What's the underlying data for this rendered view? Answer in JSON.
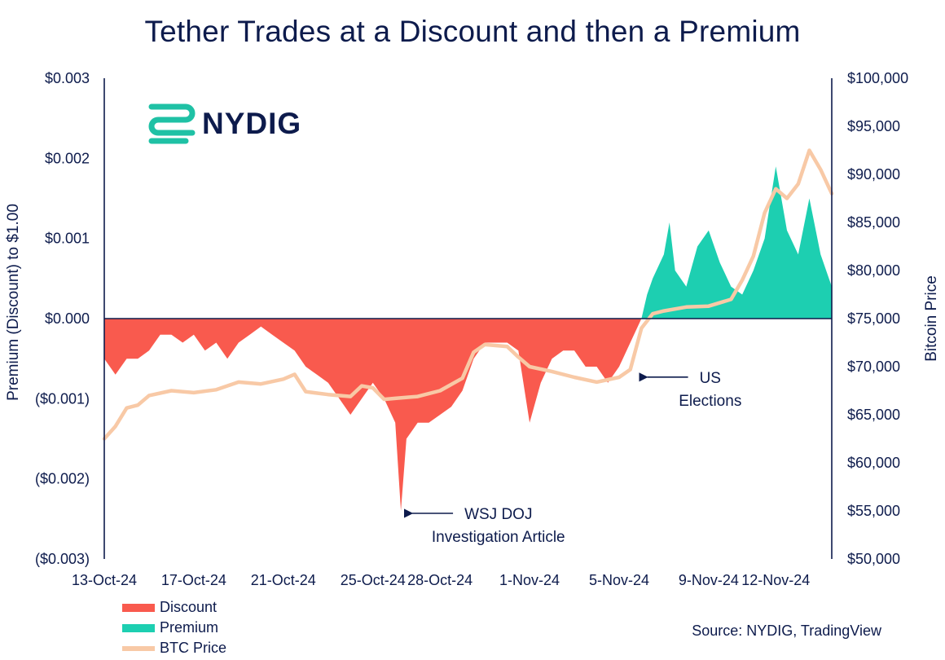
{
  "colors": {
    "discount": "#f95a4e",
    "premium": "#1dcfb1",
    "btc": "#f8c9a6",
    "axis": "#0d1b4c",
    "logo": "#1fc1a5"
  },
  "logo": {
    "icon": "nydig-logo-icon",
    "text": "NYDIG"
  },
  "source": "Source: NYDIG, TradingView",
  "chart_data": {
    "type": "area",
    "title": "Tether Trades at a Discount and then a Premium",
    "ylabel": "Premium (Discount) to $1.00",
    "y2label": "Bitcoin Price",
    "ylim": [
      -0.003,
      0.003
    ],
    "y2lim": [
      50000,
      100000
    ],
    "y_ticks": [
      {
        "value": 0.003,
        "label": "$0.003"
      },
      {
        "value": 0.002,
        "label": "$0.002"
      },
      {
        "value": 0.001,
        "label": "$0.001"
      },
      {
        "value": 0.0,
        "label": "$0.000"
      },
      {
        "value": -0.001,
        "label": "($0.001)"
      },
      {
        "value": -0.002,
        "label": "($0.002)"
      },
      {
        "value": -0.003,
        "label": "($0.003)"
      }
    ],
    "y2_ticks": [
      {
        "value": 100000,
        "label": "$100,000"
      },
      {
        "value": 95000,
        "label": "$95,000"
      },
      {
        "value": 90000,
        "label": "$90,000"
      },
      {
        "value": 85000,
        "label": "$85,000"
      },
      {
        "value": 80000,
        "label": "$80,000"
      },
      {
        "value": 75000,
        "label": "$75,000"
      },
      {
        "value": 70000,
        "label": "$70,000"
      },
      {
        "value": 65000,
        "label": "$65,000"
      },
      {
        "value": 60000,
        "label": "$60,000"
      },
      {
        "value": 55000,
        "label": "$55,000"
      },
      {
        "value": 50000,
        "label": "$50,000"
      }
    ],
    "xlim": [
      "2024-10-13",
      "2024-11-14"
    ],
    "x_ticks": [
      {
        "date": "2024-10-13",
        "label": "13-Oct-24"
      },
      {
        "date": "2024-10-17",
        "label": "17-Oct-24"
      },
      {
        "date": "2024-10-21",
        "label": "21-Oct-24"
      },
      {
        "date": "2024-10-25",
        "label": "25-Oct-24"
      },
      {
        "date": "2024-10-28",
        "label": "28-Oct-24"
      },
      {
        "date": "2024-11-01",
        "label": "1-Nov-24"
      },
      {
        "date": "2024-11-05",
        "label": "5-Nov-24"
      },
      {
        "date": "2024-11-09",
        "label": "9-Nov-24"
      },
      {
        "date": "2024-11-12",
        "label": "12-Nov-24"
      }
    ],
    "series": [
      {
        "name": "Discount",
        "axis": "left",
        "style": "area",
        "data": [
          [
            "2024-10-13T00:00",
            -0.0005
          ],
          [
            "2024-10-13T12:00",
            -0.0007
          ],
          [
            "2024-10-14T00:00",
            -0.0005
          ],
          [
            "2024-10-14T12:00",
            -0.0005
          ],
          [
            "2024-10-15T00:00",
            -0.0004
          ],
          [
            "2024-10-15T12:00",
            -0.0002
          ],
          [
            "2024-10-16T00:00",
            -0.0002
          ],
          [
            "2024-10-16T12:00",
            -0.0003
          ],
          [
            "2024-10-17T00:00",
            -0.0002
          ],
          [
            "2024-10-17T12:00",
            -0.0004
          ],
          [
            "2024-10-18T00:00",
            -0.0003
          ],
          [
            "2024-10-18T12:00",
            -0.0005
          ],
          [
            "2024-10-19T00:00",
            -0.0003
          ],
          [
            "2024-10-19T12:00",
            -0.0002
          ],
          [
            "2024-10-20T00:00",
            -0.0001
          ],
          [
            "2024-10-20T12:00",
            -0.0002
          ],
          [
            "2024-10-21T00:00",
            -0.0003
          ],
          [
            "2024-10-21T12:00",
            -0.0004
          ],
          [
            "2024-10-22T00:00",
            -0.0006
          ],
          [
            "2024-10-22T12:00",
            -0.0007
          ],
          [
            "2024-10-23T00:00",
            -0.0008
          ],
          [
            "2024-10-23T12:00",
            -0.001
          ],
          [
            "2024-10-24T00:00",
            -0.0012
          ],
          [
            "2024-10-24T12:00",
            -0.001
          ],
          [
            "2024-10-25T00:00",
            -0.0008
          ],
          [
            "2024-10-25T12:00",
            -0.001
          ],
          [
            "2024-10-26T00:00",
            -0.0013
          ],
          [
            "2024-10-26T06:00",
            -0.0024
          ],
          [
            "2024-10-26T12:00",
            -0.0015
          ],
          [
            "2024-10-27T00:00",
            -0.0013
          ],
          [
            "2024-10-27T12:00",
            -0.0013
          ],
          [
            "2024-10-28T00:00",
            -0.0012
          ],
          [
            "2024-10-28T12:00",
            -0.0011
          ],
          [
            "2024-10-29T00:00",
            -0.0009
          ],
          [
            "2024-10-29T12:00",
            -0.0005
          ],
          [
            "2024-10-30T00:00",
            -0.0003
          ],
          [
            "2024-10-30T12:00",
            -0.0003
          ],
          [
            "2024-10-31T00:00",
            -0.0003
          ],
          [
            "2024-10-31T12:00",
            -0.0004
          ],
          [
            "2024-11-01T00:00",
            -0.0013
          ],
          [
            "2024-11-01T12:00",
            -0.0008
          ],
          [
            "2024-11-02T00:00",
            -0.0005
          ],
          [
            "2024-11-02T12:00",
            -0.0004
          ],
          [
            "2024-11-03T00:00",
            -0.0004
          ],
          [
            "2024-11-03T12:00",
            -0.0006
          ],
          [
            "2024-11-04T00:00",
            -0.0006
          ],
          [
            "2024-11-04T12:00",
            -0.0008
          ],
          [
            "2024-11-05T00:00",
            -0.0006
          ],
          [
            "2024-11-05T12:00",
            -0.0003
          ],
          [
            "2024-11-06T00:00",
            0.0
          ]
        ]
      },
      {
        "name": "Premium",
        "axis": "left",
        "style": "area",
        "data": [
          [
            "2024-11-06T00:00",
            0.0
          ],
          [
            "2024-11-06T06:00",
            0.0003
          ],
          [
            "2024-11-06T12:00",
            0.0005
          ],
          [
            "2024-11-07T00:00",
            0.0008
          ],
          [
            "2024-11-07T06:00",
            0.0012
          ],
          [
            "2024-11-07T12:00",
            0.0006
          ],
          [
            "2024-11-08T00:00",
            0.0004
          ],
          [
            "2024-11-08T12:00",
            0.0009
          ],
          [
            "2024-11-09T00:00",
            0.0011
          ],
          [
            "2024-11-09T12:00",
            0.0007
          ],
          [
            "2024-11-10T00:00",
            0.0004
          ],
          [
            "2024-11-10T12:00",
            0.0003
          ],
          [
            "2024-11-11T00:00",
            0.0006
          ],
          [
            "2024-11-11T12:00",
            0.001
          ],
          [
            "2024-11-12T00:00",
            0.0019
          ],
          [
            "2024-11-12T12:00",
            0.0011
          ],
          [
            "2024-11-13T00:00",
            0.0008
          ],
          [
            "2024-11-13T12:00",
            0.0015
          ],
          [
            "2024-11-14T00:00",
            0.0008
          ],
          [
            "2024-11-14T12:00",
            0.0004
          ]
        ]
      },
      {
        "name": "BTC Price",
        "axis": "right",
        "style": "line",
        "data": [
          [
            "2024-10-13T00:00",
            62500
          ],
          [
            "2024-10-13T12:00",
            63800
          ],
          [
            "2024-10-14T00:00",
            65700
          ],
          [
            "2024-10-14T12:00",
            66000
          ],
          [
            "2024-10-15T00:00",
            67000
          ],
          [
            "2024-10-16T00:00",
            67500
          ],
          [
            "2024-10-17T00:00",
            67300
          ],
          [
            "2024-10-18T00:00",
            67600
          ],
          [
            "2024-10-19T00:00",
            68400
          ],
          [
            "2024-10-20T00:00",
            68200
          ],
          [
            "2024-10-21T00:00",
            68700
          ],
          [
            "2024-10-21T12:00",
            69200
          ],
          [
            "2024-10-22T00:00",
            67400
          ],
          [
            "2024-10-23T00:00",
            67100
          ],
          [
            "2024-10-24T00:00",
            66900
          ],
          [
            "2024-10-24T12:00",
            68000
          ],
          [
            "2024-10-25T00:00",
            67800
          ],
          [
            "2024-10-25T12:00",
            66600
          ],
          [
            "2024-10-26T00:00",
            66700
          ],
          [
            "2024-10-27T00:00",
            66900
          ],
          [
            "2024-10-28T00:00",
            67500
          ],
          [
            "2024-10-29T00:00",
            68800
          ],
          [
            "2024-10-29T12:00",
            71500
          ],
          [
            "2024-10-30T00:00",
            72300
          ],
          [
            "2024-10-31T00:00",
            72100
          ],
          [
            "2024-10-31T12:00",
            71000
          ],
          [
            "2024-11-01T00:00",
            70000
          ],
          [
            "2024-11-02T00:00",
            69500
          ],
          [
            "2024-11-03T00:00",
            68900
          ],
          [
            "2024-11-04T00:00",
            68400
          ],
          [
            "2024-11-05T00:00",
            68900
          ],
          [
            "2024-11-05T12:00",
            69700
          ],
          [
            "2024-11-06T00:00",
            74000
          ],
          [
            "2024-11-06T12:00",
            75500
          ],
          [
            "2024-11-07T00:00",
            75800
          ],
          [
            "2024-11-08T00:00",
            76200
          ],
          [
            "2024-11-09T00:00",
            76300
          ],
          [
            "2024-11-10T00:00",
            77000
          ],
          [
            "2024-11-10T12:00",
            79000
          ],
          [
            "2024-11-11T00:00",
            81500
          ],
          [
            "2024-11-11T12:00",
            86000
          ],
          [
            "2024-11-12T00:00",
            88500
          ],
          [
            "2024-11-12T12:00",
            87500
          ],
          [
            "2024-11-13T00:00",
            89000
          ],
          [
            "2024-11-13T12:00",
            92500
          ],
          [
            "2024-11-14T00:00",
            90500
          ],
          [
            "2024-11-14T12:00",
            88000
          ]
        ]
      }
    ],
    "annotations": [
      {
        "name": "wsj-doj-annotation",
        "lines": [
          "WSJ DOJ",
          "Investigation Article"
        ],
        "date": "2024-10-26T06:00",
        "value": -0.0024
      },
      {
        "name": "us-elections-annotation",
        "lines": [
          "US",
          "Elections"
        ],
        "date": "2024-11-05T18:00",
        "value": -0.0007
      }
    ]
  }
}
